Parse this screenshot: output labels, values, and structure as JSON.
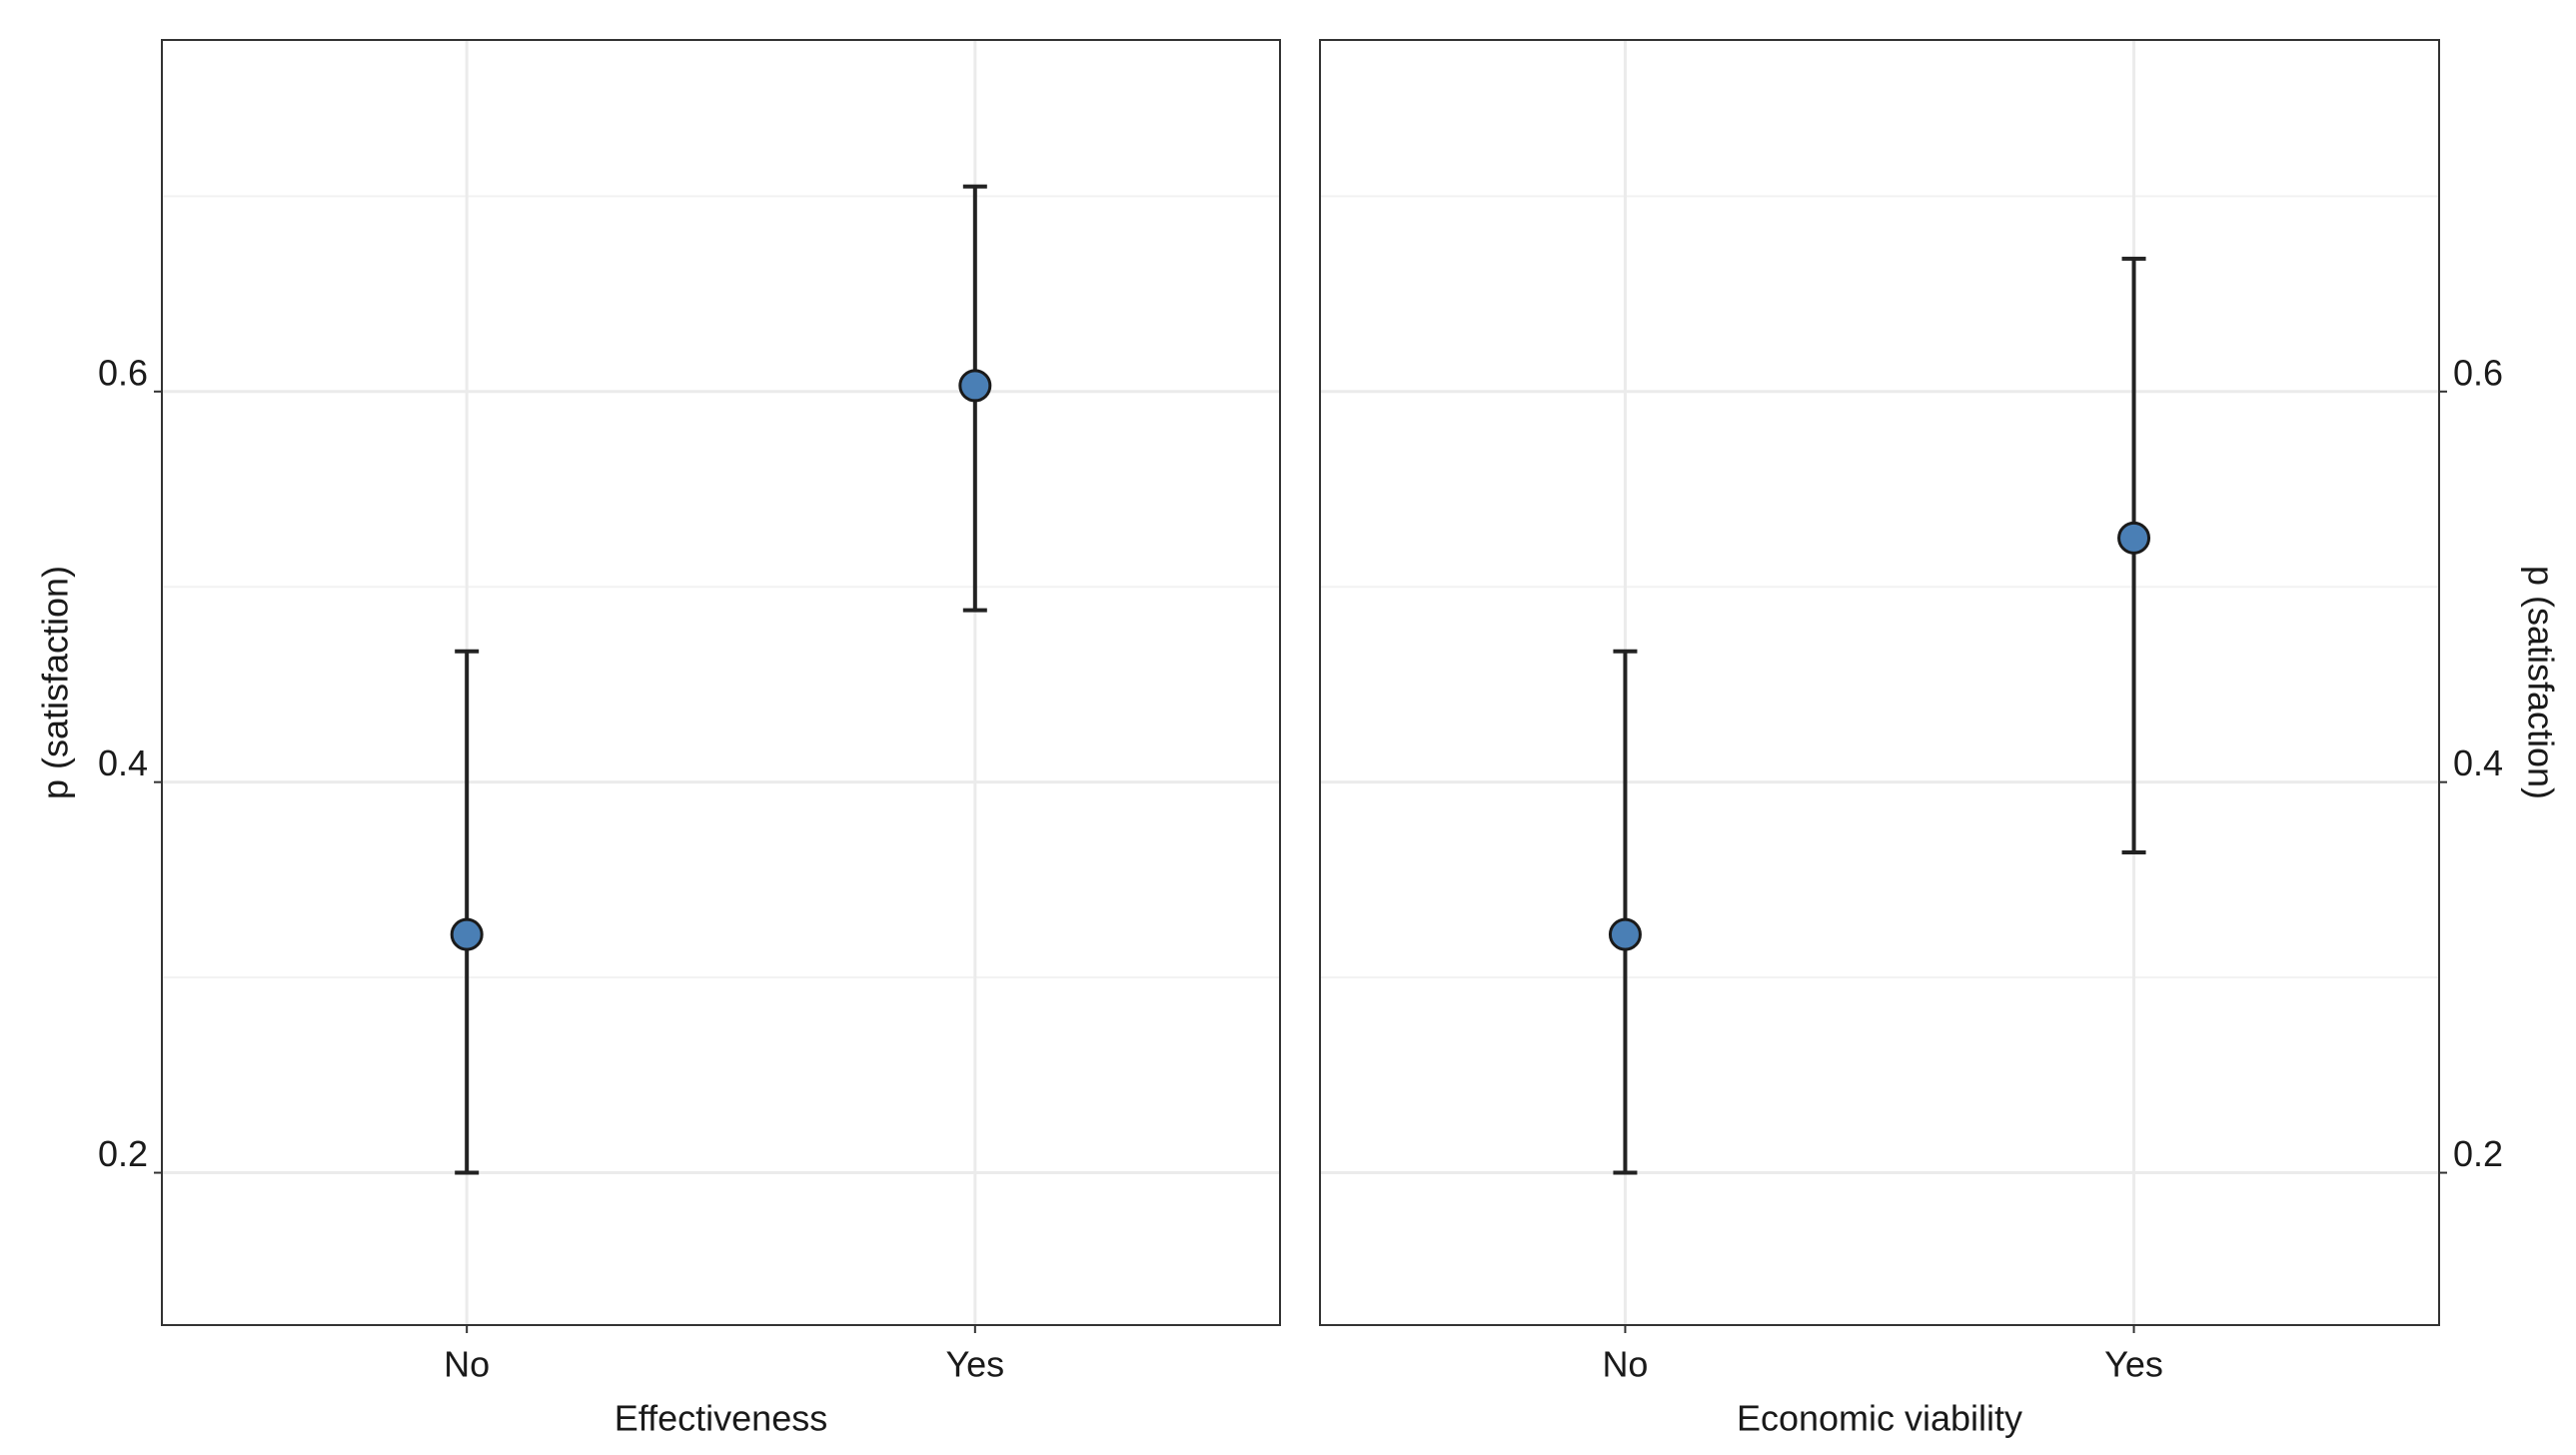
{
  "chart_data": [
    {
      "type": "errorbar",
      "x_label": "Effectiveness",
      "y_label": "p (satisfaction)",
      "y_axis_side": "left",
      "categories": [
        "No",
        "Yes"
      ],
      "values": [
        0.322,
        0.603
      ],
      "lower": [
        0.2,
        0.488
      ],
      "upper": [
        0.467,
        0.705
      ],
      "color": "#4a7fb5",
      "ylim": [
        0.122,
        0.78
      ],
      "yticks": [
        0.2,
        0.4,
        0.6
      ],
      "minor_yticks": [
        0.3,
        0.5,
        0.7
      ],
      "grid": true
    },
    {
      "type": "errorbar",
      "x_label": "Economic viability",
      "y_label": "p (satisfaction)",
      "y_axis_side": "right",
      "categories": [
        "No",
        "Yes"
      ],
      "values": [
        0.322,
        0.525
      ],
      "lower": [
        0.2,
        0.364
      ],
      "upper": [
        0.467,
        0.668
      ],
      "color": "#4a7fb5",
      "ylim": [
        0.122,
        0.78
      ],
      "yticks": [
        0.2,
        0.4,
        0.6
      ],
      "minor_yticks": [
        0.3,
        0.5,
        0.7
      ],
      "grid": true
    }
  ]
}
